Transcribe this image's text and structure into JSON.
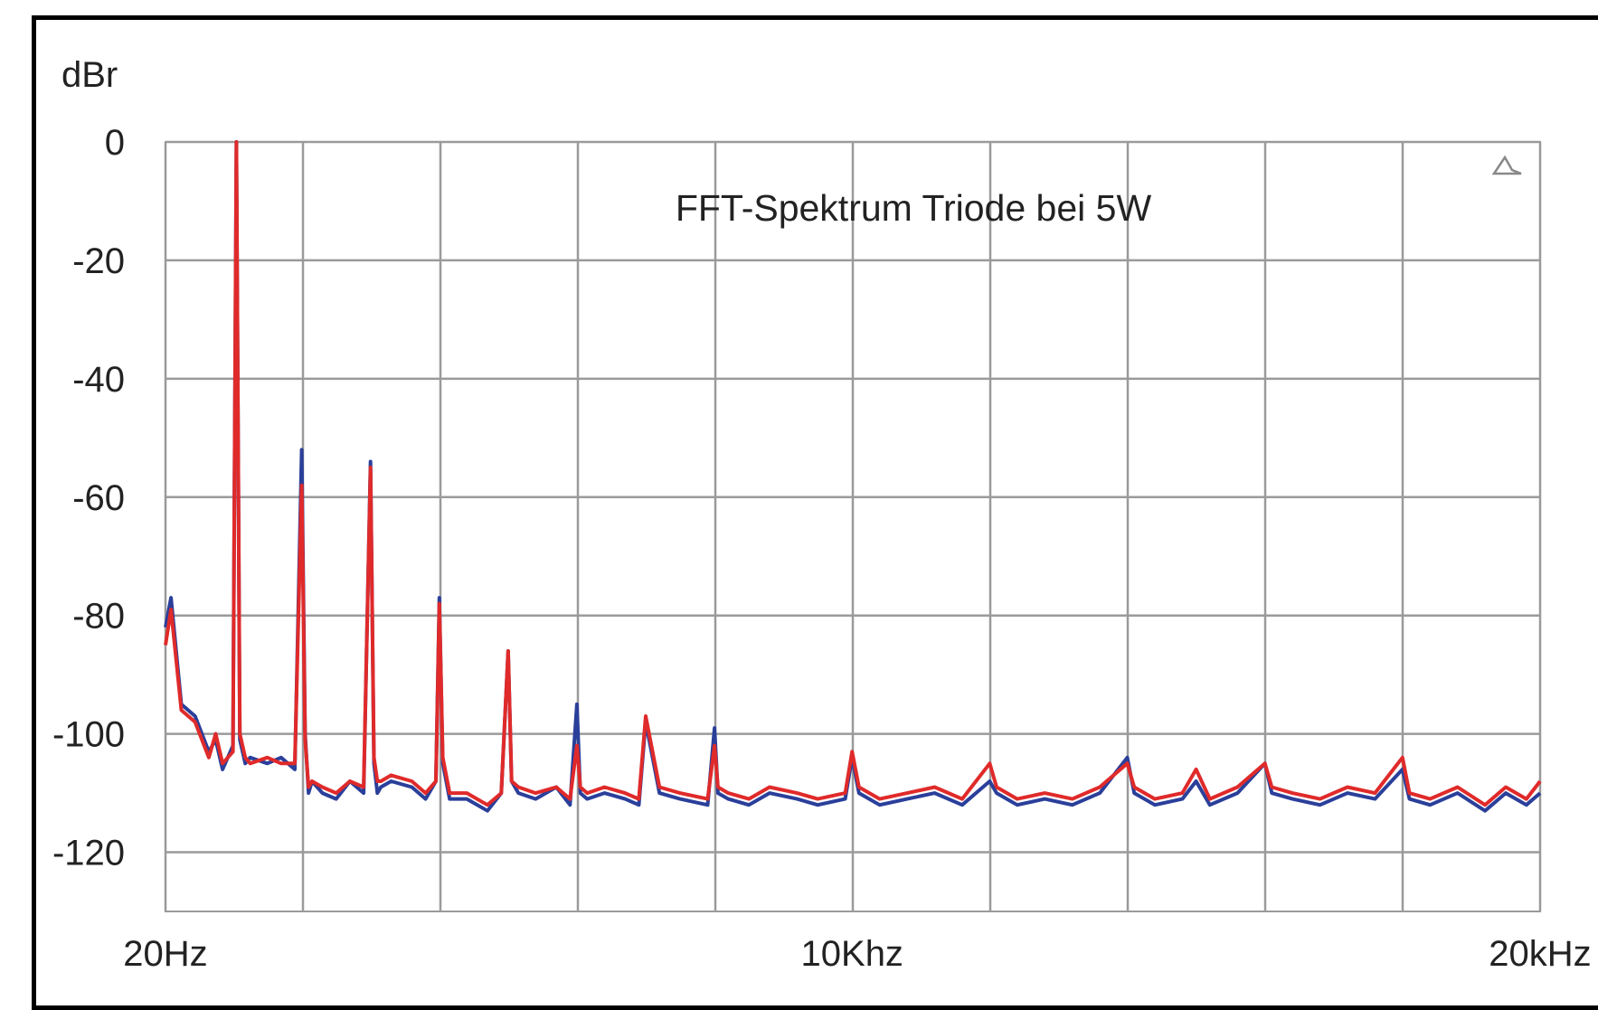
{
  "chart_data": {
    "type": "line",
    "title": "FFT-Spektrum Triode bei 5W",
    "ylabel": "dBr",
    "xlabel": "",
    "ylim": [
      -130,
      0
    ],
    "xlim": [
      20,
      20000
    ],
    "x_scale": "linear",
    "grid": true,
    "legend": "none",
    "y_ticks": [
      {
        "value": 0,
        "label": "0"
      },
      {
        "value": -20,
        "label": "-20"
      },
      {
        "value": -40,
        "label": "-40"
      },
      {
        "value": -60,
        "label": "-60"
      },
      {
        "value": -80,
        "label": "-80"
      },
      {
        "value": -100,
        "label": "-100"
      },
      {
        "value": -120,
        "label": "-120"
      }
    ],
    "x_ticks": [
      {
        "value": 20,
        "label": "20Hz"
      },
      {
        "value": 10000,
        "label": "10Khz"
      },
      {
        "value": 20000,
        "label": "20kHz"
      }
    ],
    "x_gridlines": [
      20,
      2018,
      4016,
      6014,
      8012,
      10010,
      12008,
      14006,
      16004,
      18002,
      20000
    ],
    "series": [
      {
        "color": "#2a3f9a",
        "x": [
          20,
          100,
          250,
          450,
          550,
          650,
          750,
          850,
          1000,
          1050,
          1100,
          1180,
          1250,
          1500,
          1700,
          1900,
          2000,
          2050,
          2100,
          2150,
          2300,
          2500,
          2700,
          2900,
          3000,
          3050,
          3100,
          3150,
          3300,
          3600,
          3800,
          3950,
          4000,
          4050,
          4150,
          4400,
          4700,
          4900,
          5000,
          5050,
          5150,
          5400,
          5700,
          5900,
          6000,
          6050,
          6150,
          6400,
          6700,
          6900,
          7000,
          7200,
          7500,
          7900,
          8000,
          8050,
          8200,
          8500,
          8800,
          9200,
          9500,
          9900,
          10000,
          10100,
          10400,
          10800,
          11200,
          11600,
          12000,
          12100,
          12400,
          12800,
          13200,
          13600,
          14000,
          14100,
          14400,
          14800,
          15000,
          15200,
          15600,
          16000,
          16100,
          16400,
          16800,
          17200,
          17600,
          18000,
          18100,
          18400,
          18800,
          19200,
          19500,
          19800,
          20000
        ],
        "y": [
          -82,
          -77,
          -95,
          -97,
          -100,
          -103,
          -101,
          -106,
          -102,
          0,
          -101,
          -105,
          -104,
          -105,
          -104,
          -106,
          -52,
          -100,
          -110,
          -108,
          -110,
          -111,
          -108,
          -110,
          -54,
          -105,
          -110,
          -109,
          -108,
          -109,
          -111,
          -108,
          -77,
          -105,
          -111,
          -111,
          -113,
          -110,
          -86,
          -108,
          -110,
          -111,
          -109,
          -112,
          -95,
          -110,
          -111,
          -110,
          -111,
          -112,
          -98,
          -110,
          -111,
          -112,
          -99,
          -110,
          -111,
          -112,
          -110,
          -111,
          -112,
          -111,
          -104,
          -110,
          -112,
          -111,
          -110,
          -112,
          -108,
          -110,
          -112,
          -111,
          -112,
          -110,
          -104,
          -110,
          -112,
          -111,
          -108,
          -112,
          -110,
          -105,
          -110,
          -111,
          -112,
          -110,
          -111,
          -106,
          -111,
          -112,
          -110,
          -113,
          -110,
          -112,
          -110
        ]
      },
      {
        "color": "#e02a2a",
        "x": [
          20,
          100,
          250,
          450,
          550,
          650,
          750,
          850,
          1000,
          1050,
          1100,
          1180,
          1250,
          1500,
          1700,
          1900,
          2000,
          2050,
          2100,
          2150,
          2300,
          2500,
          2700,
          2900,
          3000,
          3050,
          3100,
          3150,
          3300,
          3600,
          3800,
          3950,
          4000,
          4050,
          4150,
          4400,
          4700,
          4900,
          5000,
          5050,
          5150,
          5400,
          5700,
          5900,
          6000,
          6050,
          6150,
          6400,
          6700,
          6900,
          7000,
          7200,
          7500,
          7900,
          8000,
          8050,
          8200,
          8500,
          8800,
          9200,
          9500,
          9900,
          10000,
          10100,
          10400,
          10800,
          11200,
          11600,
          12000,
          12100,
          12400,
          12800,
          13200,
          13600,
          14000,
          14100,
          14400,
          14800,
          15000,
          15200,
          15600,
          16000,
          16100,
          16400,
          16800,
          17200,
          17600,
          18000,
          18100,
          18400,
          18800,
          19200,
          19500,
          19800,
          20000
        ],
        "y": [
          -85,
          -79,
          -96,
          -98,
          -101,
          -104,
          -100,
          -105,
          -103,
          0,
          -100,
          -104,
          -105,
          -104,
          -105,
          -105,
          -58,
          -101,
          -109,
          -108,
          -109,
          -110,
          -108,
          -109,
          -55,
          -104,
          -108,
          -108,
          -107,
          -108,
          -110,
          -108,
          -78,
          -104,
          -110,
          -110,
          -112,
          -110,
          -86,
          -108,
          -109,
          -110,
          -109,
          -111,
          -102,
          -109,
          -110,
          -109,
          -110,
          -111,
          -97,
          -109,
          -110,
          -111,
          -102,
          -109,
          -110,
          -111,
          -109,
          -110,
          -111,
          -110,
          -103,
          -109,
          -111,
          -110,
          -109,
          -111,
          -105,
          -109,
          -111,
          -110,
          -111,
          -109,
          -105,
          -109,
          -111,
          -110,
          -106,
          -111,
          -109,
          -105,
          -109,
          -110,
          -111,
          -109,
          -110,
          -104,
          -110,
          -111,
          -109,
          -112,
          -109,
          -111,
          -108
        ]
      }
    ]
  }
}
